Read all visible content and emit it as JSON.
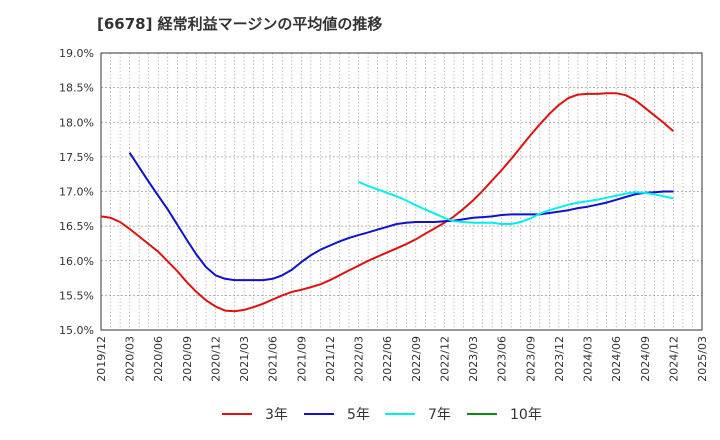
{
  "chart_data": {
    "type": "line",
    "title": "[6678]  経常利益マージンの平均値の推移",
    "xlabel": "",
    "ylabel": "",
    "x_ticks": [
      "2019/12",
      "2020/03",
      "2020/06",
      "2020/09",
      "2020/12",
      "2021/03",
      "2021/06",
      "2021/09",
      "2021/12",
      "2022/03",
      "2022/06",
      "2022/09",
      "2022/12",
      "2023/03",
      "2023/06",
      "2023/09",
      "2023/12",
      "2024/03",
      "2024/06",
      "2024/09",
      "2024/12",
      "2025/03"
    ],
    "y_ticks": [
      "15.0%",
      "15.5%",
      "16.0%",
      "16.5%",
      "17.0%",
      "17.5%",
      "18.0%",
      "18.5%",
      "19.0%"
    ],
    "ylim": [
      15.0,
      19.0
    ],
    "grid": true,
    "legend_position": "bottom",
    "series": [
      {
        "name": "3年",
        "color": "#dd1111",
        "x": [
          "2019/12",
          "2020/01",
          "2020/02",
          "2020/03",
          "2020/04",
          "2020/05",
          "2020/06",
          "2020/07",
          "2020/08",
          "2020/09",
          "2020/10",
          "2020/11",
          "2020/12",
          "2021/01",
          "2021/02",
          "2021/03",
          "2021/04",
          "2021/05",
          "2021/06",
          "2021/07",
          "2021/08",
          "2021/09",
          "2021/10",
          "2021/11",
          "2021/12",
          "2022/01",
          "2022/02",
          "2022/03",
          "2022/04",
          "2022/05",
          "2022/06",
          "2022/07",
          "2022/08",
          "2022/09",
          "2022/10",
          "2022/11",
          "2022/12",
          "2023/01",
          "2023/02",
          "2023/03",
          "2023/04",
          "2023/05",
          "2023/06",
          "2023/07",
          "2023/08",
          "2023/09",
          "2023/10",
          "2023/11",
          "2023/12",
          "2024/01",
          "2024/02",
          "2024/03",
          "2024/04",
          "2024/05",
          "2024/06",
          "2024/07",
          "2024/08",
          "2024/09",
          "2024/10",
          "2024/11",
          "2024/12"
        ],
        "values": [
          16.64,
          16.62,
          16.56,
          16.46,
          16.35,
          16.24,
          16.13,
          15.99,
          15.85,
          15.69,
          15.55,
          15.43,
          15.34,
          15.28,
          15.27,
          15.29,
          15.33,
          15.38,
          15.44,
          15.5,
          15.55,
          15.58,
          15.62,
          15.66,
          15.72,
          15.79,
          15.86,
          15.93,
          16.0,
          16.06,
          16.12,
          16.18,
          16.24,
          16.31,
          16.39,
          16.47,
          16.55,
          16.64,
          16.75,
          16.87,
          17.01,
          17.16,
          17.31,
          17.47,
          17.64,
          17.81,
          17.97,
          18.12,
          18.25,
          18.35,
          18.4,
          18.41,
          18.41,
          18.42,
          18.42,
          18.39,
          18.32,
          18.21,
          18.1,
          17.99,
          17.87
        ]
      },
      {
        "name": "5年",
        "color": "#1111cc",
        "x": [
          "2020/03",
          "2020/04",
          "2020/05",
          "2020/06",
          "2020/07",
          "2020/08",
          "2020/09",
          "2020/10",
          "2020/11",
          "2020/12",
          "2021/01",
          "2021/02",
          "2021/03",
          "2021/04",
          "2021/05",
          "2021/06",
          "2021/07",
          "2021/08",
          "2021/09",
          "2021/10",
          "2021/11",
          "2021/12",
          "2022/01",
          "2022/02",
          "2022/03",
          "2022/04",
          "2022/05",
          "2022/06",
          "2022/07",
          "2022/08",
          "2022/09",
          "2022/10",
          "2022/11",
          "2022/12",
          "2023/01",
          "2023/02",
          "2023/03",
          "2023/04",
          "2023/05",
          "2023/06",
          "2023/07",
          "2023/08",
          "2023/09",
          "2023/10",
          "2023/11",
          "2023/12",
          "2024/01",
          "2024/02",
          "2024/03",
          "2024/04",
          "2024/05",
          "2024/06",
          "2024/07",
          "2024/08",
          "2024/09",
          "2024/10",
          "2024/11",
          "2024/12"
        ],
        "values": [
          17.56,
          17.35,
          17.14,
          16.94,
          16.74,
          16.52,
          16.3,
          16.09,
          15.91,
          15.79,
          15.74,
          15.72,
          15.72,
          15.72,
          15.72,
          15.74,
          15.79,
          15.87,
          15.98,
          16.08,
          16.16,
          16.22,
          16.28,
          16.33,
          16.37,
          16.41,
          16.45,
          16.49,
          16.53,
          16.55,
          16.56,
          16.56,
          16.56,
          16.57,
          16.58,
          16.6,
          16.62,
          16.63,
          16.64,
          16.66,
          16.67,
          16.67,
          16.67,
          16.67,
          16.69,
          16.71,
          16.73,
          16.76,
          16.78,
          16.81,
          16.84,
          16.88,
          16.92,
          16.96,
          16.98,
          16.99,
          17.0,
          17.0
        ]
      },
      {
        "name": "7年",
        "color": "#00eeee",
        "x": [
          "2022/03",
          "2022/04",
          "2022/05",
          "2022/06",
          "2022/07",
          "2022/08",
          "2022/09",
          "2022/10",
          "2022/11",
          "2022/12",
          "2023/01",
          "2023/02",
          "2023/03",
          "2023/04",
          "2023/05",
          "2023/06",
          "2023/07",
          "2023/08",
          "2023/09",
          "2023/10",
          "2023/11",
          "2023/12",
          "2024/01",
          "2024/02",
          "2024/03",
          "2024/04",
          "2024/05",
          "2024/06",
          "2024/07",
          "2024/08",
          "2024/09",
          "2024/10",
          "2024/11",
          "2024/12"
        ],
        "values": [
          17.14,
          17.08,
          17.03,
          16.98,
          16.93,
          16.87,
          16.8,
          16.74,
          16.68,
          16.62,
          16.57,
          16.56,
          16.55,
          16.55,
          16.55,
          16.53,
          16.53,
          16.56,
          16.61,
          16.68,
          16.73,
          16.77,
          16.81,
          16.84,
          16.86,
          16.88,
          16.91,
          16.94,
          16.97,
          16.99,
          16.98,
          16.96,
          16.93,
          16.9
        ]
      },
      {
        "name": "10年",
        "color": "#118811",
        "x": [],
        "values": []
      }
    ]
  }
}
